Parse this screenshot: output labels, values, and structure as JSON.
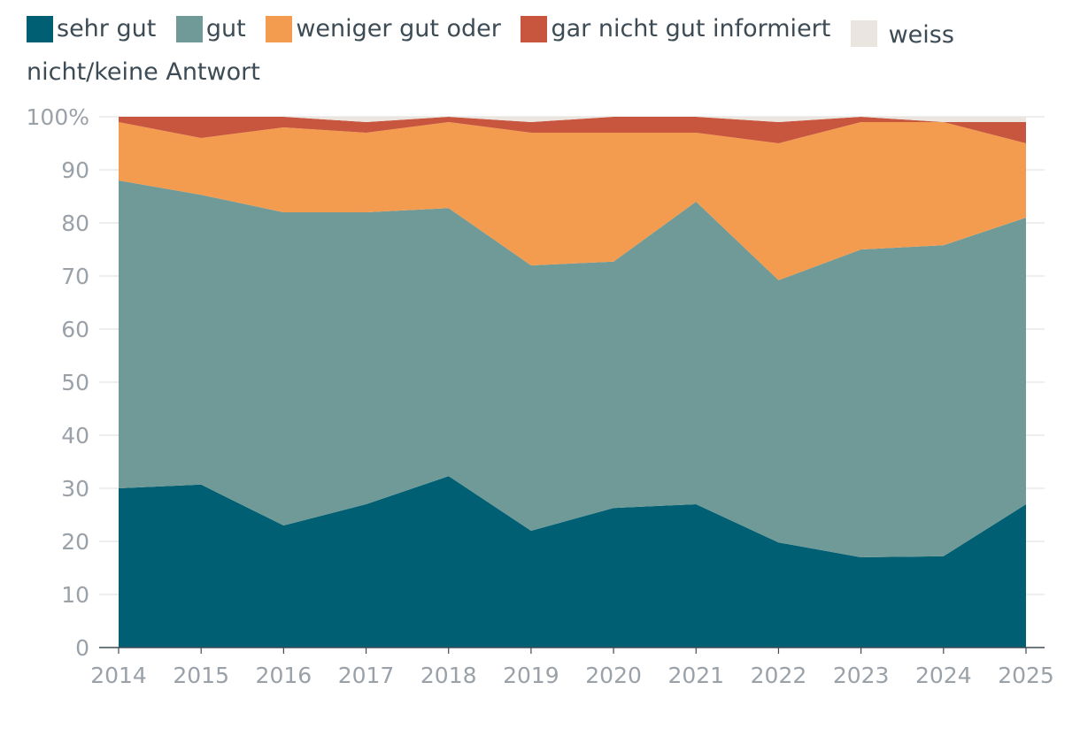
{
  "chart_data": {
    "type": "area",
    "stacked": true,
    "x": [
      "2014",
      "2015",
      "2016",
      "2017",
      "2018",
      "2019",
      "2020",
      "2021",
      "2022",
      "2023",
      "2024",
      "2025"
    ],
    "series": [
      {
        "name": "sehr gut",
        "color": "#005f73",
        "values": [
          30,
          30.7,
          23,
          27,
          32.3,
          22,
          26.3,
          27,
          19.8,
          17,
          17.2,
          27
        ]
      },
      {
        "name": "gut",
        "color": "#6f9a97",
        "values": [
          58,
          54.6,
          59,
          55,
          50.5,
          50,
          46.4,
          57,
          49.4,
          58,
          58.6,
          54
        ]
      },
      {
        "name": "weniger gut oder",
        "color": "#f39c50",
        "values": [
          11,
          10.7,
          16,
          15,
          16.2,
          25,
          24.3,
          13,
          25.8,
          24,
          23.2,
          14
        ]
      },
      {
        "name": "gar nicht gut informiert",
        "color": "#c8553d",
        "values": [
          1,
          4,
          2,
          2,
          1,
          2,
          3,
          3,
          4,
          1,
          0,
          4
        ]
      },
      {
        "name": "weiss nicht/keine Antwort",
        "color": "#ebe5df",
        "values": [
          0,
          0,
          0,
          1,
          0,
          1,
          0,
          0,
          1,
          0,
          1,
          1
        ]
      }
    ],
    "yticks": [
      "0",
      "10",
      "20",
      "30",
      "40",
      "50",
      "60",
      "70",
      "80",
      "90",
      "100%"
    ],
    "ylim": [
      0,
      100
    ],
    "grid": true,
    "legend_position": "top"
  }
}
